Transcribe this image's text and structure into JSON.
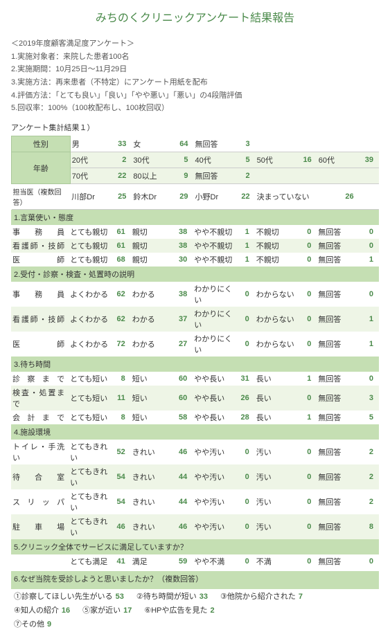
{
  "title": "みちのくクリニックアンケート結果報告",
  "intro": {
    "heading": "＜2019年度顧客満足度アンケート＞",
    "lines": [
      "1.実施対象者：来院した患者100名",
      "2.実施期間：10月25日～11月29日",
      "3.実施方法：再来患者（不特定）にアンケート用紙を配布",
      "4.評価方法：「とても良い」「良い」「やや悪い」「悪い」の4段階評価",
      "5.回収率：100%（100枚配布し、100枚回収）"
    ]
  },
  "result_label": "アンケート集計結果１）",
  "top": {
    "gender": {
      "label": "性別",
      "items": [
        [
          "男",
          33
        ],
        [
          "女",
          64
        ],
        [
          "無回答",
          3
        ]
      ]
    },
    "age": {
      "label": "年齢",
      "row1": [
        [
          "20代",
          2
        ],
        [
          "30代",
          5
        ],
        [
          "40代",
          5
        ],
        [
          "50代",
          16
        ],
        [
          "60代",
          39
        ]
      ],
      "row2": [
        [
          "70代",
          22
        ],
        [
          "80以上",
          9
        ],
        [
          "無回答",
          2
        ]
      ]
    },
    "doctor": {
      "label": "担当医（複数回答）",
      "items": [
        [
          "川部Dr",
          25
        ],
        [
          "鈴木Dr",
          29
        ],
        [
          "小野Dr",
          22
        ],
        [
          "決まっていない",
          26
        ]
      ]
    }
  },
  "sections": [
    {
      "title": "1.言葉使い・態度",
      "cols": [
        "とても親切",
        "親切",
        "やや不親切",
        "不親切",
        "無回答"
      ],
      "rows": [
        {
          "label": "事務員",
          "v": [
            61,
            38,
            1,
            0,
            0
          ]
        },
        {
          "label": "看護師・技師",
          "v": [
            61,
            38,
            1,
            0,
            0
          ]
        },
        {
          "label": "医師",
          "v": [
            68,
            30,
            1,
            0,
            1
          ]
        }
      ]
    },
    {
      "title": "2.受付・診察・検査・処置時の説明",
      "cols": [
        "よくわかる",
        "わかる",
        "わかりにくい",
        "わからない",
        "無回答"
      ],
      "rows": [
        {
          "label": "事務員",
          "v": [
            62,
            38,
            0,
            0,
            0
          ]
        },
        {
          "label": "看護師・技師",
          "v": [
            62,
            37,
            0,
            0,
            1
          ]
        },
        {
          "label": "医師",
          "v": [
            72,
            27,
            0,
            0,
            1
          ]
        }
      ]
    },
    {
      "title": "3.待ち時間",
      "cols": [
        "とても短い",
        "短い",
        "やや長い",
        "長い",
        "無回答"
      ],
      "rows": [
        {
          "label": "診察まで",
          "v": [
            8,
            60,
            31,
            1,
            0
          ]
        },
        {
          "label": "検査・処置まで",
          "v": [
            11,
            60,
            26,
            0,
            3
          ]
        },
        {
          "label": "会計まで",
          "v": [
            8,
            58,
            28,
            1,
            5
          ]
        }
      ]
    },
    {
      "title": "4.施設環境",
      "cols": [
        "とてもきれい",
        "きれい",
        "やや汚い",
        "汚い",
        "無回答"
      ],
      "rows": [
        {
          "label": "トイレ・手洗い",
          "v": [
            52,
            46,
            0,
            0,
            2
          ]
        },
        {
          "label": "待合室",
          "v": [
            54,
            44,
            0,
            0,
            2
          ]
        },
        {
          "label": "スリッパ",
          "v": [
            54,
            44,
            0,
            0,
            2
          ]
        },
        {
          "label": "駐車場",
          "v": [
            46,
            46,
            0,
            0,
            8
          ]
        }
      ]
    },
    {
      "title": "5.クリニック全体でサービスに満足していますか？",
      "cols": [
        "とても満足",
        "満足",
        "やや不満",
        "不満",
        "無回答"
      ],
      "rows": [
        {
          "label": "",
          "v": [
            41,
            59,
            0,
            0,
            0
          ]
        }
      ]
    }
  ],
  "reasons": {
    "title": "6.なぜ当院を受診しようと思いましたか？（複数回答）",
    "items": [
      [
        "①診察してほしい先生がいる",
        53
      ],
      [
        "②待ち時間が短い",
        33
      ],
      [
        "③他院から紹介された",
        7
      ],
      [
        "④知人の紹介",
        16
      ],
      [
        "⑤家が近い",
        17
      ],
      [
        "⑥HPや広告を見た",
        2
      ],
      [
        "⑦その他",
        9
      ]
    ]
  },
  "colors": {
    "accent": "#4a8a4a",
    "hdr": "#c5dfb3",
    "alt": "#eef5e6"
  }
}
